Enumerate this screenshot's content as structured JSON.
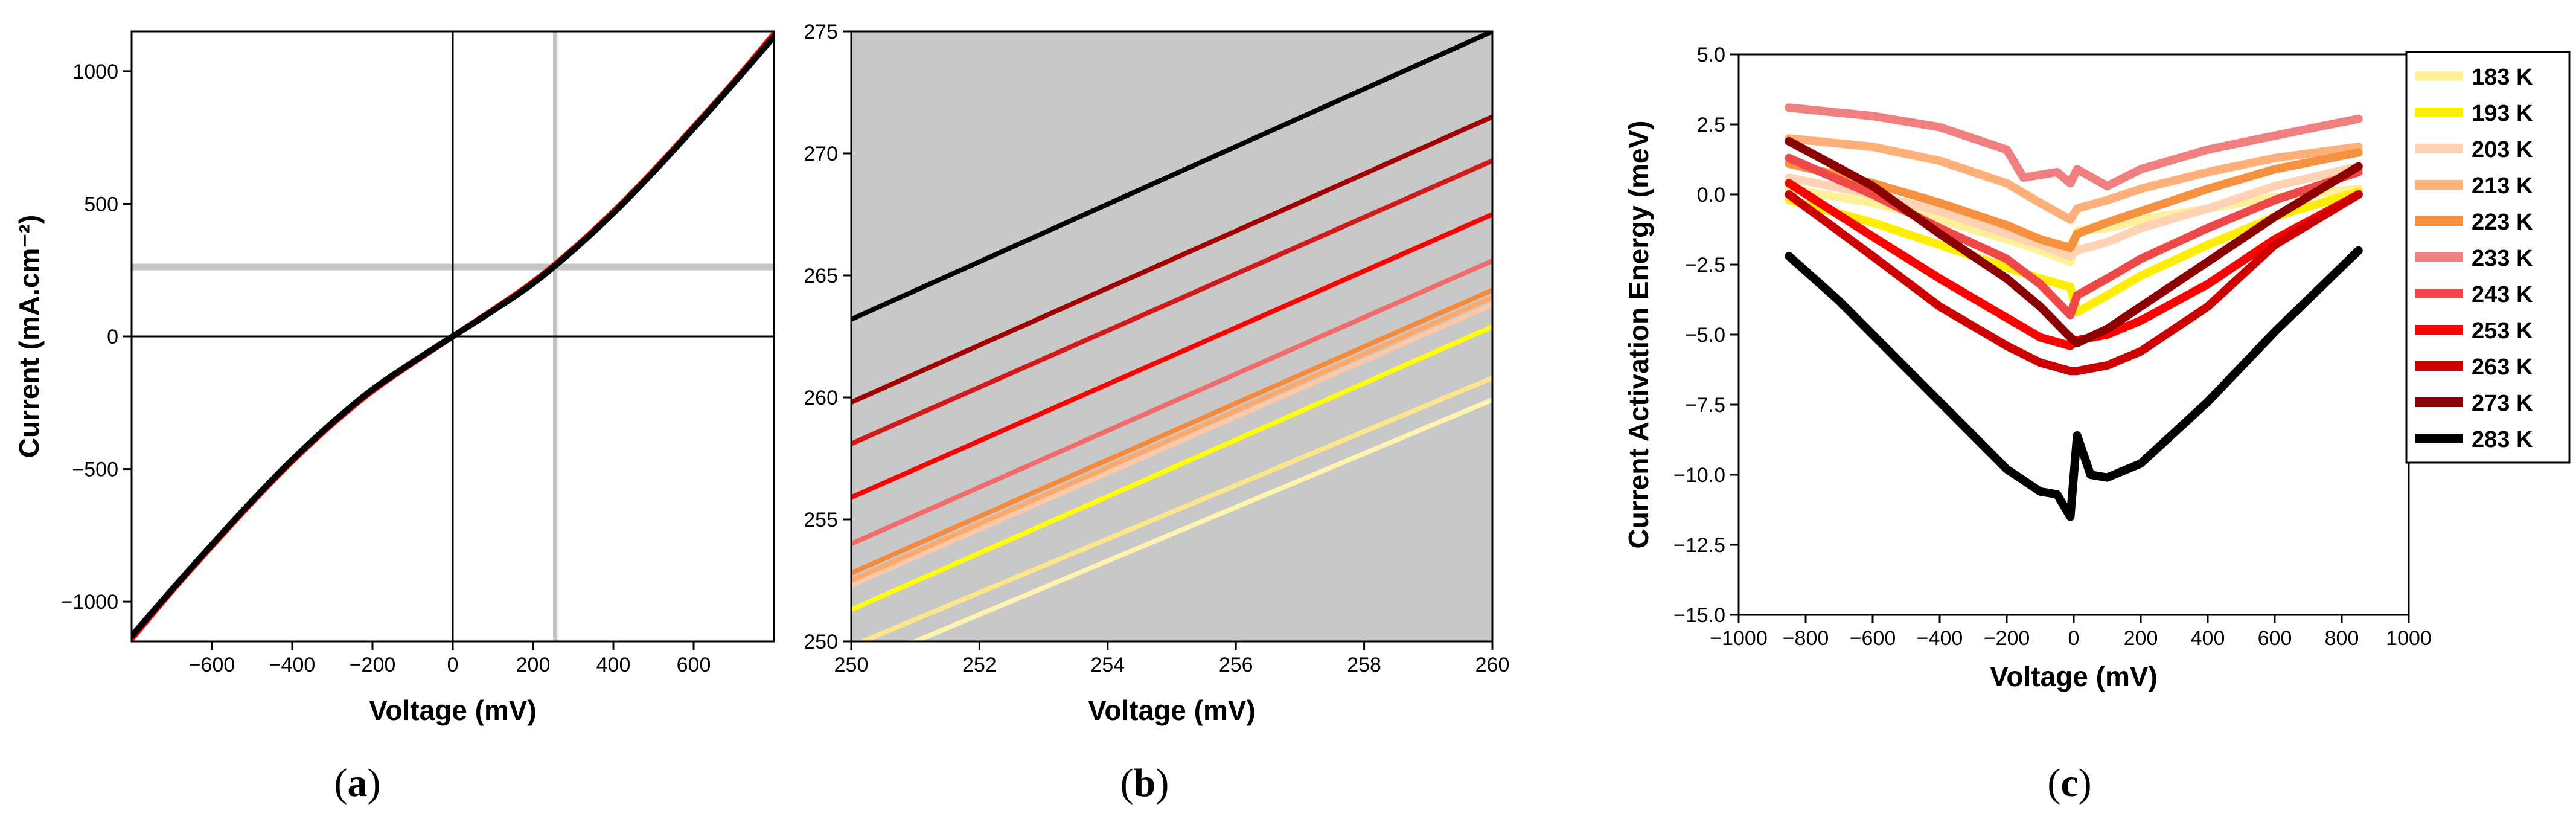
{
  "chart_data": [
    {
      "id": "a",
      "type": "line",
      "caption_letter": "a",
      "xlabel": "Voltage (mV)",
      "ylabel": "Current (mA.cm⁻²)",
      "xlim": [
        -800,
        800
      ],
      "ylim": [
        -1150,
        1150
      ],
      "xticks": [
        -600,
        -400,
        -200,
        0,
        200,
        400,
        600
      ],
      "yticks": [
        -1000,
        -500,
        0,
        500,
        1000
      ],
      "xtick_labels": [
        "−600",
        "−400",
        "−200",
        "0",
        "200",
        "400",
        "600"
      ],
      "ytick_labels": [
        "−1000",
        "−500",
        "0",
        "500",
        "1000"
      ],
      "reference_lines": {
        "vertical_x": 255,
        "horizontal_y": 262
      },
      "x": [
        -800,
        -700,
        -600,
        -500,
        -400,
        -300,
        -200,
        -100,
        0,
        100,
        200,
        300,
        400,
        500,
        600,
        700,
        800
      ],
      "series": [
        {
          "name": "183 K",
          "color": "#ffee88",
          "values": [
            -1140,
            -960,
            -790,
            -625,
            -470,
            -330,
            -205,
            -100,
            0,
            100,
            205,
            330,
            470,
            625,
            790,
            960,
            1140
          ]
        },
        {
          "name": "253 K",
          "color": "#ff0000",
          "values": [
            -1140,
            -960,
            -790,
            -625,
            -470,
            -330,
            -205,
            -100,
            0,
            100,
            205,
            330,
            470,
            625,
            790,
            960,
            1140
          ]
        },
        {
          "name": "283 K",
          "color": "#000000",
          "values": [
            -1130,
            -955,
            -785,
            -620,
            -465,
            -325,
            -200,
            -97,
            0,
            97,
            200,
            325,
            465,
            620,
            785,
            955,
            1130
          ]
        }
      ]
    },
    {
      "id": "b",
      "type": "line",
      "caption_letter": "b",
      "xlabel": "Voltage (mV)",
      "ylabel": "",
      "xlim": [
        250,
        260
      ],
      "ylim": [
        250,
        275
      ],
      "xticks": [
        250,
        252,
        254,
        256,
        258,
        260
      ],
      "yticks": [
        250,
        255,
        260,
        265,
        270,
        275
      ],
      "xtick_labels": [
        "250",
        "252",
        "254",
        "256",
        "258",
        "260"
      ],
      "ytick_labels": [
        "250",
        "255",
        "260",
        "265",
        "270",
        "275"
      ],
      "background": "#c8c8c8",
      "x": [
        250,
        260
      ],
      "series": [
        {
          "name": "183 K",
          "color": "#fff3b0",
          "values": [
            248.9,
            259.9
          ]
        },
        {
          "name": "193 K",
          "color": "#fbe78a",
          "values": [
            249.8,
            260.8
          ]
        },
        {
          "name": "203 K",
          "color": "#ffff00",
          "values": [
            251.3,
            262.9
          ]
        },
        {
          "name": "213 K",
          "color": "#ffc9a8",
          "values": [
            252.3,
            263.8
          ]
        },
        {
          "name": "223 K",
          "color": "#ffa869",
          "values": [
            252.5,
            264.1
          ]
        },
        {
          "name": "233 K",
          "color": "#f58a3c",
          "values": [
            252.8,
            264.4
          ]
        },
        {
          "name": "243 K",
          "color": "#f26b6b",
          "values": [
            254.0,
            265.6
          ]
        },
        {
          "name": "253 K",
          "color": "#ff0000",
          "values": [
            255.9,
            267.5
          ]
        },
        {
          "name": "263 K",
          "color": "#d11a1a",
          "values": [
            258.1,
            269.7
          ]
        },
        {
          "name": "273 K",
          "color": "#a00000",
          "values": [
            259.8,
            271.5
          ]
        },
        {
          "name": "283 K",
          "color": "#000000",
          "values": [
            263.2,
            275.0
          ]
        }
      ]
    },
    {
      "id": "c",
      "type": "line",
      "caption_letter": "c",
      "xlabel": "Voltage (mV)",
      "ylabel": "Current Activation Energy (meV)",
      "xlim": [
        -1000,
        1000
      ],
      "ylim": [
        -15.0,
        5.0
      ],
      "xticks": [
        -1000,
        -800,
        -600,
        -400,
        -200,
        0,
        200,
        400,
        600,
        800,
        1000
      ],
      "yticks": [
        -15.0,
        -12.5,
        -10.0,
        -7.5,
        -5.0,
        -2.5,
        0.0,
        2.5,
        5.0
      ],
      "xtick_labels": [
        "−1000",
        "−800",
        "−600",
        "−400",
        "−200",
        "0",
        "200",
        "400",
        "600",
        "800",
        "1000"
      ],
      "ytick_labels": [
        "−15.0",
        "−12.5",
        "−10.0",
        "−7.5",
        "−5.0",
        "−2.5",
        "0.0",
        "2.5",
        "5.0"
      ],
      "legend_position": "right",
      "series": [
        {
          "name": "183 K",
          "color": "#fff099",
          "x": [
            -850,
            -600,
            -400,
            -200,
            -100,
            -10,
            10,
            100,
            200,
            400,
            600,
            850
          ],
          "values": [
            0.2,
            -0.3,
            -0.9,
            -1.6,
            -2.0,
            -2.4,
            -1.3,
            -1.2,
            -0.9,
            -0.5,
            -0.1,
            0.2
          ]
        },
        {
          "name": "193 K",
          "color": "#ffee00",
          "x": [
            -850,
            -600,
            -400,
            -200,
            -100,
            -10,
            10,
            100,
            200,
            400,
            600,
            850
          ],
          "values": [
            -0.2,
            -1.0,
            -1.8,
            -2.6,
            -3.0,
            -3.3,
            -4.2,
            -3.6,
            -2.9,
            -1.8,
            -0.8,
            0.1
          ]
        },
        {
          "name": "203 K",
          "color": "#ffd2b4",
          "x": [
            -850,
            -600,
            -400,
            -200,
            -100,
            -10,
            10,
            100,
            200,
            400,
            600,
            850
          ],
          "values": [
            0.6,
            0.0,
            -0.6,
            -1.4,
            -1.8,
            -2.2,
            -2.0,
            -1.7,
            -1.2,
            -0.5,
            0.3,
            1.0
          ]
        },
        {
          "name": "213 K",
          "color": "#ffb07a",
          "x": [
            -850,
            -600,
            -400,
            -200,
            -100,
            -10,
            10,
            100,
            200,
            400,
            600,
            850
          ],
          "values": [
            2.0,
            1.7,
            1.2,
            0.4,
            -0.3,
            -0.9,
            -0.5,
            -0.2,
            0.2,
            0.8,
            1.3,
            1.7
          ]
        },
        {
          "name": "223 K",
          "color": "#f5913f",
          "x": [
            -850,
            -600,
            -400,
            -200,
            -100,
            -10,
            10,
            100,
            200,
            400,
            600,
            850
          ],
          "values": [
            1.1,
            0.4,
            -0.3,
            -1.1,
            -1.6,
            -1.9,
            -1.4,
            -1.0,
            -0.6,
            0.2,
            0.9,
            1.5
          ]
        },
        {
          "name": "233 K",
          "color": "#f08080",
          "x": [
            -850,
            -600,
            -400,
            -200,
            -150,
            -100,
            -50,
            -10,
            10,
            100,
            200,
            400,
            600,
            850
          ],
          "values": [
            3.1,
            2.8,
            2.4,
            1.6,
            0.6,
            0.7,
            0.8,
            0.4,
            0.9,
            0.3,
            0.9,
            1.6,
            2.1,
            2.7
          ]
        },
        {
          "name": "243 K",
          "color": "#ee4848",
          "x": [
            -850,
            -600,
            -400,
            -200,
            -100,
            -10,
            10,
            100,
            200,
            400,
            600,
            850
          ],
          "values": [
            1.3,
            0.0,
            -1.2,
            -2.3,
            -3.2,
            -4.3,
            -3.6,
            -3.0,
            -2.3,
            -1.2,
            -0.2,
            0.8
          ]
        },
        {
          "name": "253 K",
          "color": "#ff0000",
          "x": [
            -850,
            -600,
            -400,
            -200,
            -100,
            -10,
            10,
            100,
            200,
            400,
            600,
            850
          ],
          "values": [
            0.4,
            -1.5,
            -3.0,
            -4.4,
            -5.1,
            -5.4,
            -5.2,
            -5.0,
            -4.5,
            -3.2,
            -1.6,
            0.0
          ]
        },
        {
          "name": "263 K",
          "color": "#cc0000",
          "x": [
            -850,
            -600,
            -400,
            -200,
            -100,
            -10,
            10,
            100,
            200,
            400,
            600,
            850
          ],
          "values": [
            0.0,
            -2.2,
            -4.0,
            -5.4,
            -6.0,
            -6.3,
            -6.3,
            -6.1,
            -5.6,
            -4.0,
            -1.8,
            0.0
          ]
        },
        {
          "name": "273 K",
          "color": "#8b0000",
          "x": [
            -850,
            -600,
            -400,
            -200,
            -100,
            -10,
            10,
            100,
            200,
            400,
            600,
            850
          ],
          "values": [
            1.9,
            0.3,
            -1.4,
            -3.0,
            -4.0,
            -5.1,
            -5.3,
            -4.8,
            -4.0,
            -2.4,
            -0.8,
            1.0
          ]
        },
        {
          "name": "283 K",
          "color": "#000000",
          "x": [
            -850,
            -700,
            -500,
            -300,
            -200,
            -100,
            -50,
            -10,
            10,
            50,
            100,
            200,
            400,
            600,
            850
          ],
          "values": [
            -2.2,
            -3.8,
            -6.2,
            -8.6,
            -9.8,
            -10.6,
            -10.7,
            -11.5,
            -8.6,
            -10.0,
            -10.1,
            -9.6,
            -7.4,
            -4.9,
            -2.0
          ]
        }
      ]
    }
  ]
}
